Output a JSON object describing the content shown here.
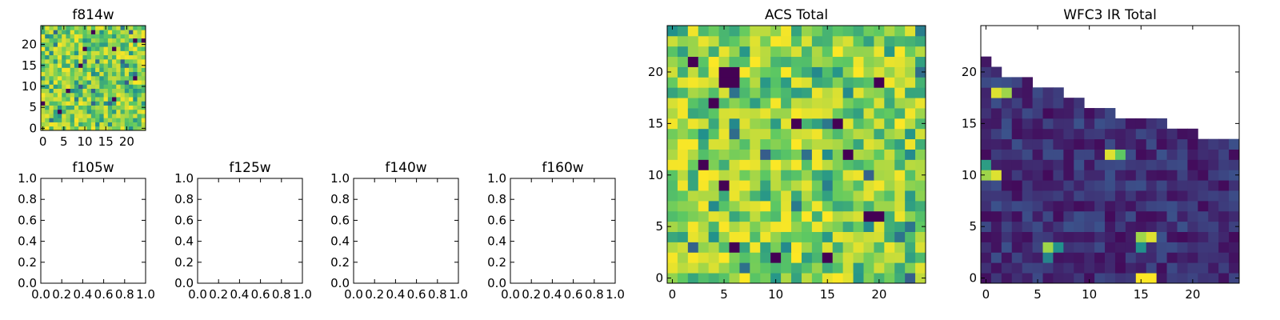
{
  "figure": {
    "colormap": "viridis",
    "colormap_stops": [
      "#440154",
      "#3b528b",
      "#21918c",
      "#5ec962",
      "#fde725"
    ]
  },
  "chart_data": [
    {
      "id": "f814w",
      "type": "heatmap",
      "title": "f814w",
      "xlim": [
        -0.5,
        24.5
      ],
      "ylim": [
        -0.5,
        24.5
      ],
      "xticks": [
        0,
        5,
        10,
        15,
        20
      ],
      "yticks": [
        0,
        5,
        10,
        15,
        20
      ],
      "rows": 25,
      "cols": 25,
      "pattern": "random_mostly_bright",
      "value_range": [
        0,
        1
      ]
    },
    {
      "id": "f105w",
      "type": "heatmap",
      "title": "f105w",
      "empty": true,
      "xlim": [
        0,
        1
      ],
      "ylim": [
        0,
        1
      ],
      "xticks": [
        "0.0",
        "0.2",
        "0.4",
        "0.6",
        "0.8",
        "1.0"
      ],
      "yticks": [
        "0.0",
        "0.2",
        "0.4",
        "0.6",
        "0.8",
        "1.0"
      ]
    },
    {
      "id": "f125w",
      "type": "heatmap",
      "title": "f125w",
      "empty": true,
      "xlim": [
        0,
        1
      ],
      "ylim": [
        0,
        1
      ],
      "xticks": [
        "0.0",
        "0.2",
        "0.4",
        "0.6",
        "0.8",
        "1.0"
      ],
      "yticks": [
        "0.0",
        "0.2",
        "0.4",
        "0.6",
        "0.8",
        "1.0"
      ]
    },
    {
      "id": "f140w",
      "type": "heatmap",
      "title": "f140w",
      "empty": true,
      "xlim": [
        0,
        1
      ],
      "ylim": [
        0,
        1
      ],
      "xticks": [
        "0.0",
        "0.2",
        "0.4",
        "0.6",
        "0.8",
        "1.0"
      ],
      "yticks": [
        "0.0",
        "0.2",
        "0.4",
        "0.6",
        "0.8",
        "1.0"
      ]
    },
    {
      "id": "f160w",
      "type": "heatmap",
      "title": "f160w",
      "empty": true,
      "xlim": [
        0,
        1
      ],
      "ylim": [
        0,
        1
      ],
      "xticks": [
        "0.0",
        "0.2",
        "0.4",
        "0.6",
        "0.8",
        "1.0"
      ],
      "yticks": [
        "0.0",
        "0.2",
        "0.4",
        "0.6",
        "0.8",
        "1.0"
      ]
    },
    {
      "id": "acs_total",
      "type": "heatmap",
      "title": "ACS Total",
      "xlim": [
        -0.5,
        24.5
      ],
      "ylim": [
        -0.5,
        24.5
      ],
      "xticks": [
        0,
        5,
        10,
        15,
        20
      ],
      "yticks": [
        0,
        5,
        10,
        15,
        20
      ],
      "rows": 25,
      "cols": 25,
      "pattern": "random_mostly_bright",
      "value_range": [
        0,
        1
      ],
      "dark_cells": [
        [
          5,
          20
        ],
        [
          6,
          20
        ],
        [
          5,
          19
        ],
        [
          6,
          19
        ],
        [
          2,
          21
        ],
        [
          20,
          19
        ],
        [
          12,
          15
        ],
        [
          16,
          15
        ],
        [
          5,
          9
        ],
        [
          10,
          2
        ],
        [
          19,
          6
        ],
        [
          20,
          6
        ]
      ]
    },
    {
      "id": "wfc3_ir_total",
      "type": "heatmap",
      "title": "WFC3 IR Total",
      "xlim": [
        -0.5,
        24.5
      ],
      "ylim": [
        -0.5,
        24.5
      ],
      "xticks": [
        0,
        5,
        10,
        15,
        20
      ],
      "yticks": [
        0,
        5,
        10,
        15,
        20
      ],
      "rows": 25,
      "cols": 25,
      "pattern": "mostly_dark_with_hot_spots",
      "value_range": [
        0,
        1
      ],
      "column_top_row": [
        21,
        20,
        19,
        19,
        19,
        18,
        18,
        18,
        17,
        17,
        16,
        16,
        16,
        15,
        15,
        15,
        15,
        15,
        14,
        14,
        14,
        13,
        13,
        13,
        13
      ],
      "hot_cells": [
        {
          "x": 1,
          "y": 18,
          "v": 0.95
        },
        {
          "x": 2,
          "y": 18,
          "v": 0.85
        },
        {
          "x": 0,
          "y": 10,
          "v": 0.85
        },
        {
          "x": 1,
          "y": 10,
          "v": 0.95
        },
        {
          "x": 0,
          "y": 11,
          "v": 0.55
        },
        {
          "x": 12,
          "y": 12,
          "v": 0.95
        },
        {
          "x": 13,
          "y": 12,
          "v": 0.75
        },
        {
          "x": 6,
          "y": 3,
          "v": 0.85
        },
        {
          "x": 7,
          "y": 3,
          "v": 0.5
        },
        {
          "x": 6,
          "y": 2,
          "v": 0.45
        },
        {
          "x": 15,
          "y": 4,
          "v": 0.85
        },
        {
          "x": 16,
          "y": 4,
          "v": 0.95
        },
        {
          "x": 15,
          "y": 3,
          "v": 0.5
        },
        {
          "x": 15,
          "y": 0,
          "v": 1.0
        },
        {
          "x": 16,
          "y": 0,
          "v": 1.0
        }
      ]
    }
  ]
}
